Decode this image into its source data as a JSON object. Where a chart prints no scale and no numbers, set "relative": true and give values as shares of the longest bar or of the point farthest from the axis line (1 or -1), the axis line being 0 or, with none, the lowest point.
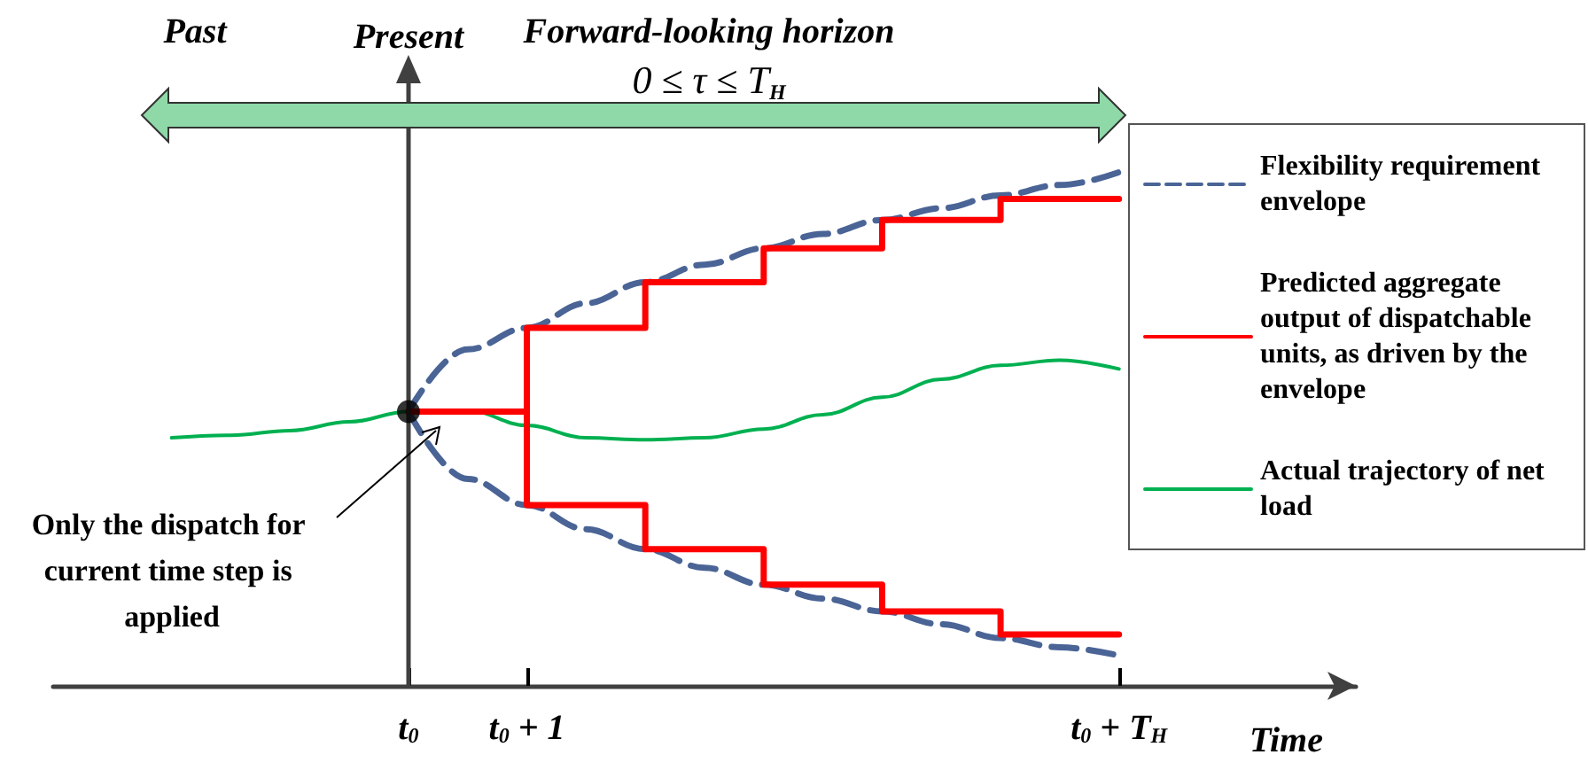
{
  "chart_data": {
    "type": "line",
    "relative": true,
    "xlabel": "Time",
    "legend": "right",
    "marker": "none",
    "grid": false,
    "categories": [
      null,
      null,
      null,
      null,
      null,
      null,
      "t$_{0}$",
      null,
      "t$_{0}$ + 1",
      null,
      null,
      null,
      null,
      null,
      null,
      null,
      null,
      null,
      "t$_{0}$ + T$_{H}$",
      null,
      null,
      null,
      null
    ],
    "ref_lines": [
      {
        "axis": "x",
        "value": "t$_{0}$",
        "label": "Present",
        "color": "#404040"
      }
    ],
    "annotations": [
      "Past",
      "Forward-looking horizon",
      "0 ≤ τ ≤ T$_{H}$",
      "Only the dispatch for current time step is applied"
    ],
    "series": [
      {
        "name": "Flexibility requirement envelope",
        "type": "line",
        "line_style": "dashed",
        "color": "#4a6496",
        "values": [
          null,
          null,
          null,
          null,
          null,
          null,
          0.534,
          0.655,
          0.697,
          0.745,
          0.786,
          0.82,
          0.852,
          0.88,
          0.907,
          0.93,
          0.955,
          0.975,
          1,
          null,
          null,
          null,
          null
        ]
      },
      {
        "type": "line",
        "line_style": "dashed",
        "color": "#4a6496",
        "values": [
          null,
          null,
          null,
          null,
          null,
          null,
          0.534,
          0.403,
          0.352,
          0.305,
          0.266,
          0.23,
          0.197,
          0.17,
          0.145,
          0.12,
          0.093,
          0.075,
          0.059,
          null,
          null,
          null,
          null
        ]
      },
      {
        "name": "Predicted aggregate output of dispatchable units, as driven by the envelope",
        "type": "step",
        "line_style": "solid",
        "color": "#ff0000",
        "values": [
          null,
          null,
          null,
          null,
          null,
          null,
          0.534,
          0.534,
          0.697,
          0.697,
          0.786,
          0.786,
          0.852,
          0.852,
          0.907,
          0.907,
          0.948,
          0.948,
          0.948,
          null,
          null,
          null,
          null
        ]
      },
      {
        "type": "step",
        "line_style": "solid",
        "color": "#ff0000",
        "values": [
          null,
          null,
          null,
          null,
          null,
          null,
          0.534,
          0.534,
          0.352,
          0.352,
          0.266,
          0.266,
          0.197,
          0.197,
          0.145,
          0.145,
          0.1,
          0.1,
          0.1,
          null,
          null,
          null,
          null
        ]
      },
      {
        "name": "Actual trajectory of net load",
        "type": "line",
        "line_style": "solid",
        "color": "#00b050",
        "values": [
          null,
          null,
          0.483,
          0.488,
          0.497,
          0.514,
          0.534,
          0.536,
          0.507,
          0.483,
          0.479,
          0.483,
          0.5,
          0.528,
          0.562,
          0.597,
          0.624,
          0.634,
          0.617,
          null,
          null,
          null,
          null
        ]
      },
      {
        "type": "scatter",
        "marker": "circle",
        "color": "#000000",
        "values": [
          null,
          null,
          null,
          null,
          null,
          null,
          0.534,
          null,
          null,
          null,
          null,
          null,
          null,
          null,
          null,
          null,
          null,
          null,
          null,
          null,
          null,
          null,
          null
        ]
      }
    ]
  }
}
